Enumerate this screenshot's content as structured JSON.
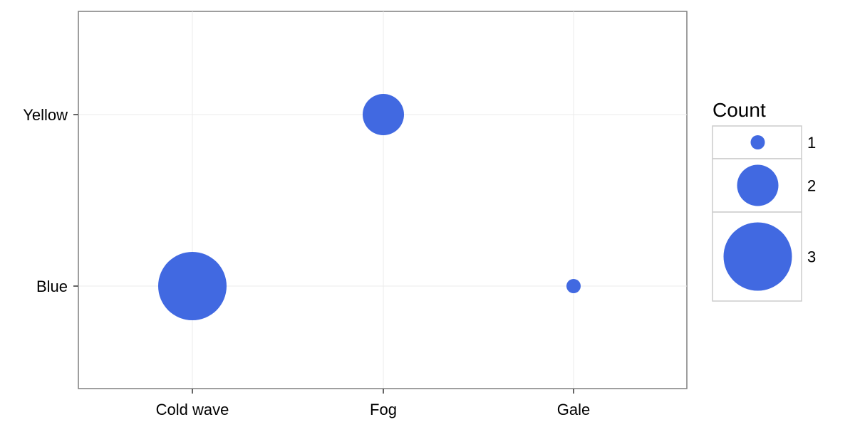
{
  "chart_data": {
    "type": "scatter",
    "title": "",
    "xlabel": "",
    "ylabel": "",
    "x_categories": [
      "Cold wave",
      "Fog",
      "Gale"
    ],
    "y_categories": [
      "Blue",
      "Yellow"
    ],
    "points": [
      {
        "x": "Cold wave",
        "y": "Blue",
        "count": 3
      },
      {
        "x": "Fog",
        "y": "Yellow",
        "count": 2
      },
      {
        "x": "Gale",
        "y": "Blue",
        "count": 1
      }
    ],
    "grid": true,
    "point_color": "#4169E1",
    "legend": {
      "title": "Count",
      "placement": "right",
      "entries": [
        {
          "label": "1",
          "count": 1
        },
        {
          "label": "2",
          "count": 2
        },
        {
          "label": "3",
          "count": 3
        }
      ]
    }
  }
}
